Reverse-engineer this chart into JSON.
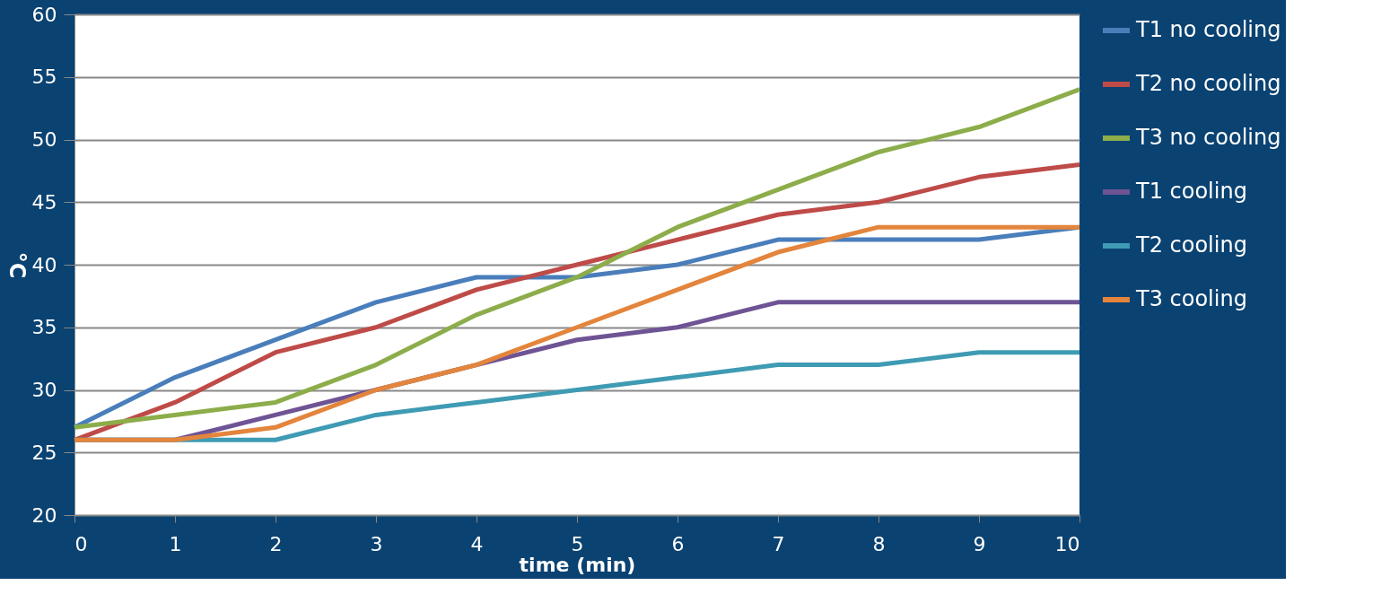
{
  "chart_data": {
    "type": "line",
    "xlabel": "time (min)",
    "ylabel": "°C",
    "x": [
      0,
      1,
      2,
      3,
      4,
      5,
      6,
      7,
      8,
      9,
      10
    ],
    "xlim": [
      0,
      10
    ],
    "xticks": [
      0,
      1,
      2,
      3,
      4,
      5,
      6,
      7,
      8,
      9,
      10
    ],
    "ylim": [
      20,
      60
    ],
    "yticks": [
      20,
      25,
      30,
      35,
      40,
      45,
      50,
      55,
      60
    ],
    "grid": "y",
    "legend": "right",
    "line_style": "solid",
    "series": [
      {
        "name": "T1 no cooling",
        "color": "#4a7ebb",
        "values": [
          27,
          31,
          34,
          37,
          39,
          39,
          40,
          42,
          42,
          42,
          43
        ]
      },
      {
        "name": "T2 no cooling",
        "color": "#be4b48",
        "values": [
          26,
          29,
          33,
          35,
          38,
          40,
          42,
          44,
          45,
          47,
          48
        ]
      },
      {
        "name": "T3 no cooling",
        "color": "#8cad4a",
        "values": [
          27,
          28,
          29,
          32,
          36,
          39,
          43,
          46,
          49,
          51,
          54
        ]
      },
      {
        "name": "T1 cooling",
        "color": "#6e5494",
        "values": [
          26,
          26,
          28,
          30,
          32,
          34,
          35,
          37,
          37,
          37,
          37
        ]
      },
      {
        "name": "T2 cooling",
        "color": "#3e9bb3",
        "values": [
          26,
          26,
          26,
          28,
          29,
          30,
          31,
          32,
          32,
          33,
          33
        ]
      },
      {
        "name": "T3 cooling",
        "color": "#e3853c",
        "values": [
          26,
          26,
          27,
          30,
          32,
          35,
          38,
          41,
          43,
          43,
          43
        ]
      }
    ]
  }
}
